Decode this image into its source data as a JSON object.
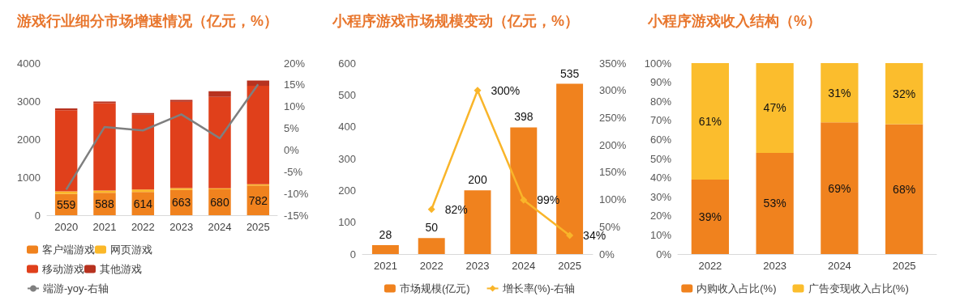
{
  "chart_data": [
    {
      "type": "bar",
      "title": "游戏行业细分市场增速情况（亿元，%）",
      "categories": [
        "2020",
        "2021",
        "2022",
        "2023",
        "2024",
        "2025"
      ],
      "stacked": true,
      "legend": "bottom",
      "grid": false,
      "marker": "none",
      "ylim": [
        0,
        4000
      ],
      "yticks": [
        0,
        1000,
        2000,
        3000,
        4000
      ],
      "y2lim": [
        -15,
        20
      ],
      "y2ticks": [
        {
          "value": -15,
          "label": "-15%"
        },
        {
          "value": -10,
          "label": "-10%"
        },
        {
          "value": -5,
          "label": "-5%"
        },
        {
          "value": 0,
          "label": "0%"
        },
        {
          "value": 5,
          "label": "5%"
        },
        {
          "value": 10,
          "label": "10%"
        },
        {
          "value": 15,
          "label": "15%"
        },
        {
          "value": 20,
          "label": "20%"
        }
      ],
      "series": [
        {
          "name": "客户端游戏",
          "color": "#f0821e",
          "values": [
            559,
            588,
            614,
            663,
            680,
            782
          ],
          "value_labels": [
            "559",
            "588",
            "614",
            "663",
            "680",
            "782"
          ]
        },
        {
          "name": "网页游戏",
          "color": "#fbb829",
          "values": [
            70,
            60,
            60,
            50,
            30,
            30
          ]
        },
        {
          "name": "移动游戏",
          "color": "#e0401b",
          "values": [
            2130,
            2300,
            1970,
            2270,
            2400,
            2590
          ]
        },
        {
          "name": "其他游戏",
          "color": "#b7321f",
          "values": [
            50,
            40,
            40,
            50,
            150,
            140
          ]
        },
        {
          "name": "端游-yoy-右轴",
          "type": "line",
          "axis": "y2",
          "color": "#7f7f7f",
          "values": [
            -9.1,
            5.3,
            4.5,
            8.2,
            2.7,
            15.1
          ]
        }
      ]
    },
    {
      "type": "bar",
      "title": "小程序游戏市场规模变动（亿元，%）",
      "categories": [
        "2021",
        "2022",
        "2023",
        "2024",
        "2025"
      ],
      "legend": "bottom",
      "grid": false,
      "marker": "diamond",
      "ylim": [
        0,
        600
      ],
      "yticks": [
        0,
        100,
        200,
        300,
        400,
        500,
        600
      ],
      "y2lim": [
        0,
        350
      ],
      "y2ticks": [
        {
          "value": 0,
          "label": "0%"
        },
        {
          "value": 50,
          "label": "50%"
        },
        {
          "value": 100,
          "label": "100%"
        },
        {
          "value": 150,
          "label": "150%"
        },
        {
          "value": 200,
          "label": "200%"
        },
        {
          "value": 250,
          "label": "250%"
        },
        {
          "value": 300,
          "label": "300%"
        },
        {
          "value": 350,
          "label": "350%"
        }
      ],
      "series": [
        {
          "name": "市场规模(亿元)",
          "color": "#f0821e",
          "values": [
            28,
            50,
            200,
            398,
            535
          ],
          "value_labels": [
            "28",
            "50",
            "200",
            "398",
            "535"
          ]
        },
        {
          "name": "增长率(%)-右轴",
          "type": "line",
          "axis": "y2",
          "color": "#f9b52a",
          "values": [
            null,
            82,
            300,
            99,
            34
          ],
          "value_labels": [
            null,
            "82%",
            "300%",
            "99%",
            "34%"
          ]
        }
      ]
    },
    {
      "type": "bar",
      "title": "小程序游戏收入结构（%）",
      "categories": [
        "2022",
        "2023",
        "2024",
        "2025"
      ],
      "stacked": true,
      "legend": "bottom",
      "grid": false,
      "ylim": [
        0,
        100
      ],
      "yticks": [
        {
          "value": 0,
          "label": "0%"
        },
        {
          "value": 10,
          "label": "10%"
        },
        {
          "value": 20,
          "label": "20%"
        },
        {
          "value": 30,
          "label": "30%"
        },
        {
          "value": 40,
          "label": "40%"
        },
        {
          "value": 50,
          "label": "50%"
        },
        {
          "value": 60,
          "label": "60%"
        },
        {
          "value": 70,
          "label": "70%"
        },
        {
          "value": 80,
          "label": "80%"
        },
        {
          "value": 90,
          "label": "90%"
        },
        {
          "value": 100,
          "label": "100%"
        }
      ],
      "series": [
        {
          "name": "内购收入占比(%)",
          "color": "#f0821e",
          "values": [
            39,
            53,
            69,
            68
          ],
          "value_labels": [
            "39%",
            "53%",
            "69%",
            "68%"
          ]
        },
        {
          "name": "广告变现收入占比(%)",
          "color": "#fbbd2d",
          "values": [
            61,
            47,
            31,
            32
          ],
          "value_labels": [
            "61%",
            "47%",
            "31%",
            "32%"
          ]
        }
      ]
    }
  ]
}
